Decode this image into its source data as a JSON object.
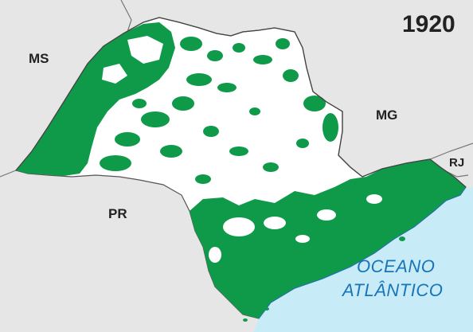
{
  "year": "1920",
  "neighbors": {
    "ms": "MS",
    "mg": "MG",
    "pr": "PR",
    "rj": "RJ"
  },
  "ocean": {
    "line1": "OCEANO",
    "line2": "ATLÂNTICO"
  },
  "colors": {
    "forest": "#0f9a4a",
    "cleared": "#ffffff",
    "ocean": "#c7ecf8",
    "neighbor": "#e6e6e6",
    "border": "#555555",
    "ocean_label": "#1a74b8"
  },
  "legend_meaning": {
    "forest_color": "#0f9a4a"
  }
}
